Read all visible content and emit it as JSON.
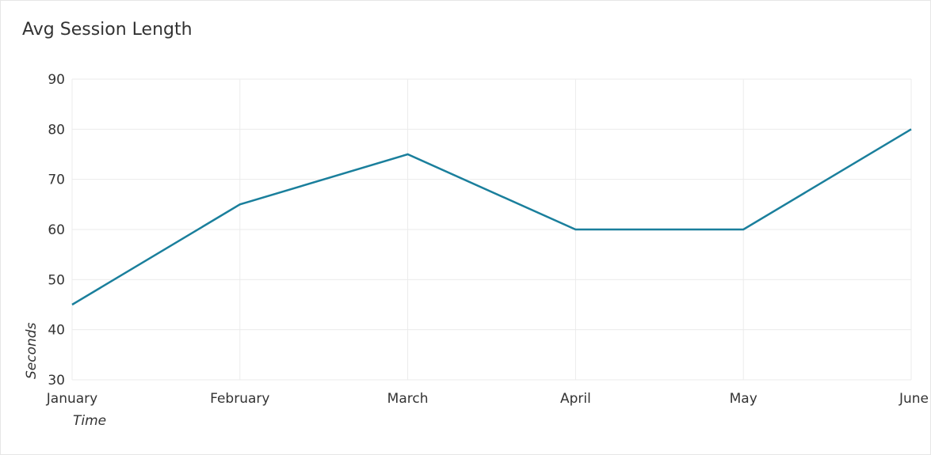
{
  "chart_data": {
    "type": "line",
    "title": "Avg Session Length",
    "xlabel": "Time",
    "ylabel": "Seconds",
    "categories": [
      "January",
      "February",
      "March",
      "April",
      "May",
      "June"
    ],
    "series": [
      {
        "values": [
          45,
          65,
          75,
          60,
          60,
          80
        ]
      }
    ],
    "ylim": [
      30,
      90
    ],
    "yticks": [
      30,
      40,
      50,
      60,
      70,
      80,
      90
    ],
    "grid": true,
    "legend": "none",
    "colors": {
      "line": "#1a7f9c",
      "grid": "#ebebeb",
      "text": "#333333"
    }
  }
}
